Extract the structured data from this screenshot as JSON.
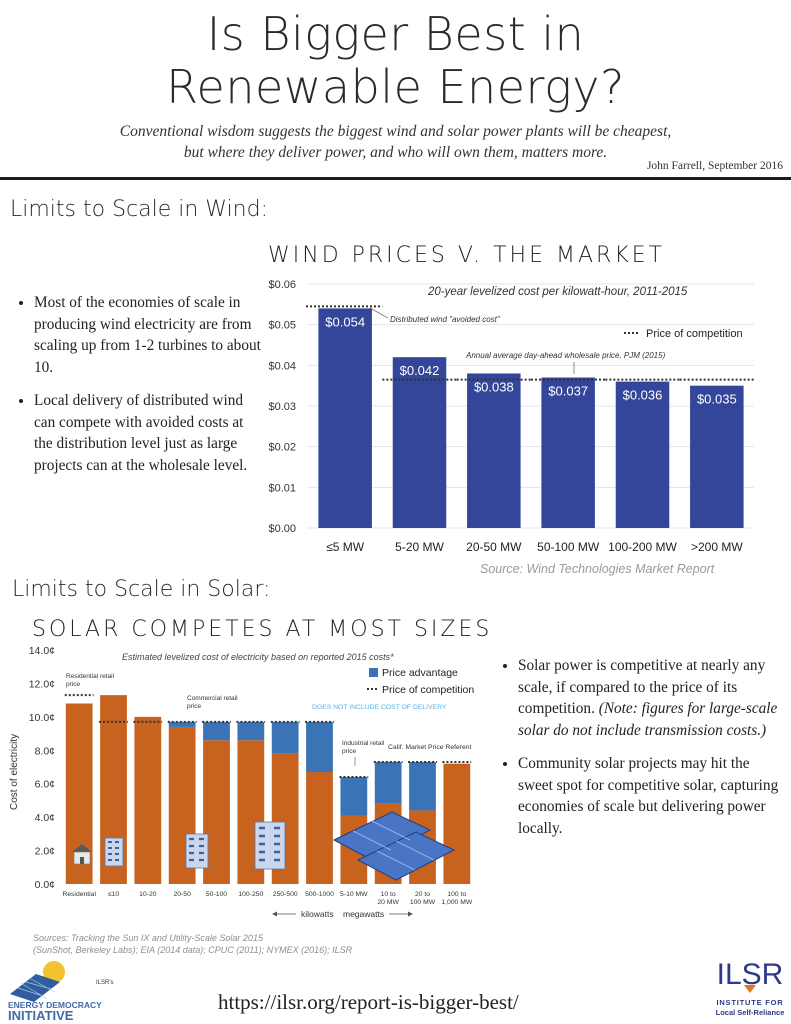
{
  "header": {
    "title_line1": "Is Bigger Best in",
    "title_line2": "Renewable Energy?",
    "subtitle_line1": "Conventional wisdom suggests the biggest wind and solar power plants will be cheapest,",
    "subtitle_line2": "but where they deliver power, and who will own them, matters more.",
    "byline": "John Farrell, September 2016"
  },
  "wind_section": {
    "heading": "Limits to Scale in Wind:",
    "bullets": [
      "Most of the economies of scale in producing wind electricity are from scaling up from 1-2 turbines to about 10.",
      "Local delivery of distributed wind can compete with avoided costs at the distribution level just as large projects can at the wholesale level."
    ]
  },
  "solar_section": {
    "heading": "Limits to Scale in Solar:",
    "bullet1_main": "Solar power is competitive at nearly any scale, if compared to the price of its competition.",
    "bullet1_note": "(Note: figures for large-scale solar do not include transmission costs.)",
    "bullet2": "Community solar projects may hit the sweet spot for competitive solar, capturing economies of scale but delivering power locally."
  },
  "footer": {
    "sources_line1": "Sources: Tracking the Sun IX and Utility-Scale Solar 2015",
    "sources_line2": "(SunShot, Berkeley Labs); EIA (2014 data); CPUC (2011); NYMEX (2016); ILSR",
    "url": "https://ilsr.org/report-is-bigger-best/",
    "left_logo_line1": "ILSR's",
    "left_logo_line2": "ENERGY DEMOCRACY",
    "left_logo_line3": "INITIATIVE",
    "right_logo_mark": "ILSR",
    "right_logo_line1": "INSTITUTE FOR",
    "right_logo_line2": "Local Self-Reliance"
  },
  "colors": {
    "wind_bar": "#33469a",
    "solar_cost": "#c8621f",
    "solar_advantage": "#3b74b6",
    "competition_line": "#333333",
    "delivery_note": "#5aaee6"
  },
  "chart_data": [
    {
      "type": "bar",
      "title": "WIND PRICES V. THE MARKET",
      "subtitle": "20-year levelized cost per kilowatt-hour, 2011-2015",
      "categories": [
        "≤5 MW",
        "5-20 MW",
        "20-50 MW",
        "50-100 MW",
        "100-200 MW",
        ">200 MW"
      ],
      "values": [
        0.054,
        0.042,
        0.038,
        0.037,
        0.036,
        0.035
      ],
      "value_labels": [
        "$0.054",
        "$0.042",
        "$0.038",
        "$0.037",
        "$0.036",
        "$0.035"
      ],
      "competition": [
        0.0545,
        0.0365,
        0.0365,
        0.0365,
        0.0365,
        0.0365
      ],
      "ylim": [
        0,
        0.06
      ],
      "yticks": [
        0,
        0.01,
        0.02,
        0.03,
        0.04,
        0.05,
        0.06
      ],
      "ytick_labels": [
        "$0.00",
        "$0.01",
        "$0.02",
        "$0.03",
        "$0.04",
        "$0.05",
        "$0.06"
      ],
      "legend": [
        "Price of competition"
      ],
      "annotations": [
        "Distributed wind \"avoided cost\"",
        "Annual average day-ahead wholesale price, PJM (2015)"
      ],
      "source": "Source: Wind Technologies Market Report"
    },
    {
      "type": "bar",
      "title": "SOLAR COMPETES AT MOST SIZES",
      "subtitle": "Estimated levelized cost of electricity based on reported 2015 costs*",
      "ylabel": "Cost of electricity",
      "categories": [
        "Residential",
        "≤10",
        "10-20",
        "20-50",
        "50-100",
        "100-250",
        "250-500",
        "500-1000",
        "5-10 MW",
        "10 to 20 MW",
        "20 to 100 MW",
        "100 to 1,000 MW"
      ],
      "series": [
        {
          "name": "Cost of electricity",
          "values": [
            10.8,
            11.3,
            10.0,
            9.4,
            8.6,
            8.6,
            7.8,
            6.7,
            4.1,
            4.8,
            4.4,
            7.2
          ]
        },
        {
          "name": "Price advantage",
          "values": [
            0.0,
            0.0,
            0.0,
            0.3,
            1.1,
            1.1,
            1.9,
            3.0,
            2.3,
            2.5,
            2.9,
            0.0
          ]
        }
      ],
      "competition": [
        11.3,
        9.7,
        9.7,
        9.7,
        9.7,
        9.7,
        9.7,
        9.7,
        6.4,
        7.3,
        7.3,
        7.3
      ],
      "ylim": [
        0,
        14
      ],
      "yticks": [
        0,
        2,
        4,
        6,
        8,
        10,
        12,
        14
      ],
      "ytick_labels": [
        "0.0¢",
        "2.0¢",
        "4.0¢",
        "6.0¢",
        "8.0¢",
        "10.0¢",
        "12.0¢",
        "14.0¢"
      ],
      "legend": [
        "Price advantage",
        "Price of competition"
      ],
      "annotations": [
        "Residential retail price",
        "Commercial retail price",
        "DOES NOT INCLUDE COST OF DELIVERY",
        "Industrial retail price",
        "Calif. Market Price Referent"
      ],
      "xunits": [
        "kilowatts",
        "megawatts"
      ]
    }
  ]
}
